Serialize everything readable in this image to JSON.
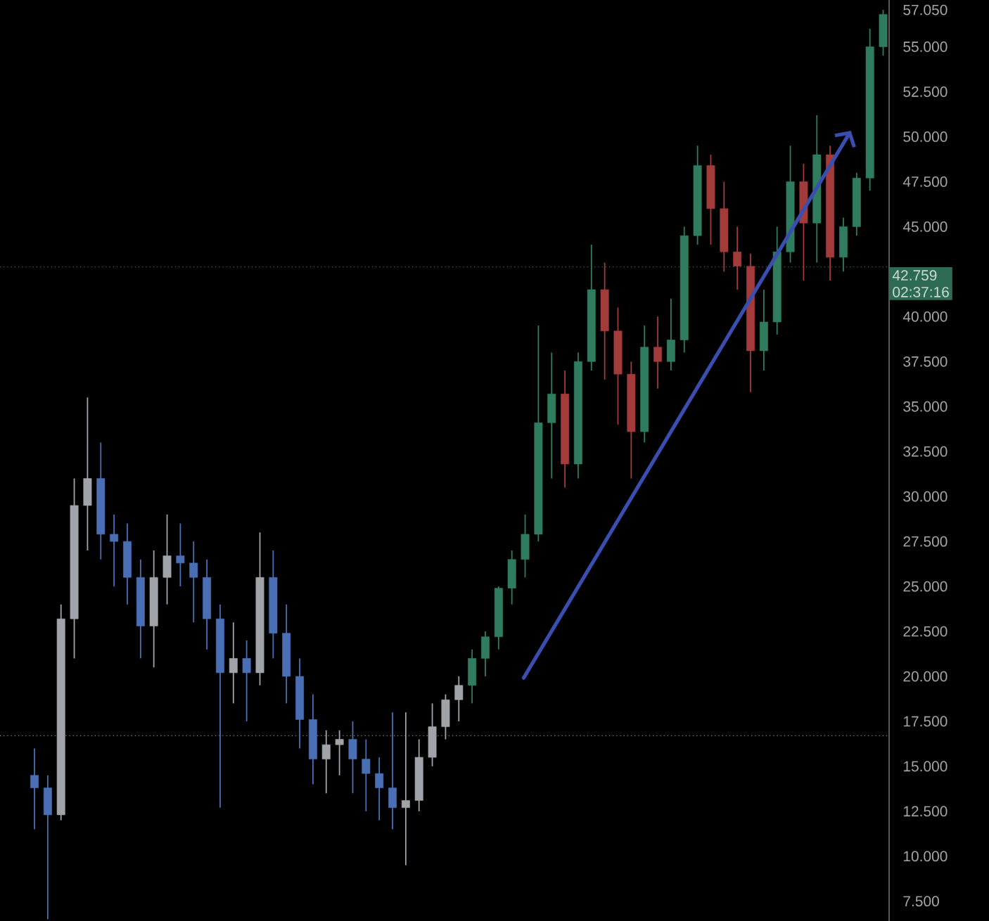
{
  "chart_data": {
    "type": "candlestick",
    "categories": [
      null,
      null,
      null,
      null,
      null,
      null,
      null,
      null,
      null,
      null,
      null,
      null,
      null,
      null,
      null,
      null,
      null,
      null,
      null,
      null,
      null,
      null,
      null,
      null,
      null,
      null,
      null,
      null,
      null,
      null,
      null,
      null,
      null,
      null,
      null,
      null,
      null,
      null,
      null,
      null,
      null,
      null,
      null,
      null,
      null,
      null,
      null,
      null,
      null,
      null,
      null,
      null,
      null,
      null,
      null,
      null,
      null,
      null,
      null,
      null,
      null,
      null,
      null,
      null,
      null
    ],
    "ohlc": [
      [
        14500,
        16000,
        11500,
        13800
      ],
      [
        13800,
        14500,
        6500,
        12300
      ],
      [
        12300,
        24000,
        12000,
        23200
      ],
      [
        23200,
        31000,
        21000,
        29500
      ],
      [
        29500,
        35500,
        27000,
        31000
      ],
      [
        31000,
        33000,
        26500,
        27900
      ],
      [
        27900,
        29000,
        25000,
        27500
      ],
      [
        27500,
        28500,
        24000,
        25500
      ],
      [
        25500,
        26500,
        21000,
        22800
      ],
      [
        22800,
        27000,
        20500,
        25500
      ],
      [
        25500,
        29000,
        24000,
        26700
      ],
      [
        26700,
        28500,
        25000,
        26300
      ],
      [
        26300,
        27500,
        23000,
        25500
      ],
      [
        25500,
        26500,
        21500,
        23200
      ],
      [
        23200,
        24000,
        12700,
        20200
      ],
      [
        20200,
        23000,
        18500,
        21000
      ],
      [
        21000,
        22000,
        17500,
        20200
      ],
      [
        20200,
        28000,
        19500,
        25500
      ],
      [
        25500,
        27000,
        21000,
        22400
      ],
      [
        22400,
        24000,
        18500,
        20000
      ],
      [
        20000,
        21000,
        16000,
        17600
      ],
      [
        17600,
        19000,
        14000,
        15400
      ],
      [
        15400,
        17000,
        13500,
        16200
      ],
      [
        16200,
        17000,
        14500,
        16500
      ],
      [
        16500,
        17500,
        13500,
        15400
      ],
      [
        15400,
        16500,
        12500,
        14600
      ],
      [
        14600,
        15500,
        12000,
        13800
      ],
      [
        13800,
        18000,
        11500,
        12700
      ],
      [
        12700,
        18000,
        9500,
        13100
      ],
      [
        13100,
        16500,
        12500,
        15500
      ],
      [
        15500,
        18500,
        15000,
        17200
      ],
      [
        17200,
        19000,
        16500,
        18700
      ],
      [
        18700,
        20000,
        17500,
        19500
      ],
      [
        19500,
        21500,
        18500,
        21000
      ],
      [
        21000,
        22500,
        20000,
        22200
      ],
      [
        22200,
        25000,
        21500,
        24900
      ],
      [
        24900,
        27000,
        24000,
        26500
      ],
      [
        26500,
        29000,
        25500,
        27900
      ],
      [
        27900,
        39500,
        27500,
        34100
      ],
      [
        34100,
        38000,
        31000,
        35700
      ],
      [
        35700,
        37000,
        30500,
        31800
      ],
      [
        31800,
        38000,
        31000,
        37500
      ],
      [
        37500,
        44000,
        37000,
        41500
      ],
      [
        41500,
        43000,
        36500,
        39200
      ],
      [
        39200,
        40500,
        34000,
        36800
      ],
      [
        36800,
        37500,
        31000,
        33600
      ],
      [
        33600,
        39500,
        33000,
        38300
      ],
      [
        38300,
        40000,
        36000,
        37500
      ],
      [
        37500,
        41000,
        37000,
        38700
      ],
      [
        38700,
        45000,
        38000,
        44500
      ],
      [
        44500,
        49500,
        44000,
        48400
      ],
      [
        48400,
        49000,
        44000,
        46000
      ],
      [
        46000,
        47500,
        42500,
        43600
      ],
      [
        43600,
        45000,
        41500,
        42800
      ],
      [
        42800,
        43500,
        35800,
        38100
      ],
      [
        38100,
        41500,
        37000,
        39700
      ],
      [
        39700,
        45000,
        39000,
        43600
      ],
      [
        43600,
        49500,
        43000,
        47500
      ],
      [
        47500,
        48500,
        42000,
        45200
      ],
      [
        45200,
        51200,
        43000,
        49000
      ],
      [
        49000,
        49500,
        42000,
        43300
      ],
      [
        43300,
        45500,
        42500,
        45000
      ],
      [
        45000,
        48000,
        44500,
        47700
      ],
      [
        47700,
        56000,
        47000,
        55000
      ],
      [
        55000,
        57050,
        54500,
        56800
      ]
    ],
    "colors": [
      "#4a6fb5",
      "#4a6fb5",
      "#a0a4a8",
      "#a0a4a8",
      "#a0a4a8",
      "#4a6fb5",
      "#4a6fb5",
      "#4a6fb5",
      "#4a6fb5",
      "#a0a4a8",
      "#a0a4a8",
      "#4a6fb5",
      "#4a6fb5",
      "#4a6fb5",
      "#4a6fb5",
      "#a0a4a8",
      "#4a6fb5",
      "#a0a4a8",
      "#4a6fb5",
      "#4a6fb5",
      "#4a6fb5",
      "#4a6fb5",
      "#a0a4a8",
      "#a0a4a8",
      "#4a6fb5",
      "#4a6fb5",
      "#4a6fb5",
      "#4a6fb5",
      "#a0a4a8",
      "#a0a4a8",
      "#a0a4a8",
      "#a0a4a8",
      "#a0a4a8",
      "#2f7d5e",
      "#2f7d5e",
      "#2f7d5e",
      "#2f7d5e",
      "#2f7d5e",
      "#2f7d5e",
      "#2f7d5e",
      "#a33b3b",
      "#2f7d5e",
      "#2f7d5e",
      "#a33b3b",
      "#a33b3b",
      "#a33b3b",
      "#2f7d5e",
      "#a33b3b",
      "#2f7d5e",
      "#2f7d5e",
      "#2f7d5e",
      "#a33b3b",
      "#a33b3b",
      "#a33b3b",
      "#a33b3b",
      "#2f7d5e",
      "#2f7d5e",
      "#2f7d5e",
      "#a33b3b",
      "#2f7d5e",
      "#a33b3b",
      "#2f7d5e",
      "#2f7d5e",
      "#2f7d5e",
      "#2f7d5e"
    ],
    "ylim": [
      6400,
      57600
    ],
    "yticks": [
      {
        "value": 7500,
        "label": "7.500"
      },
      {
        "value": 10000,
        "label": "10.000"
      },
      {
        "value": 12500,
        "label": "12.500"
      },
      {
        "value": 15000,
        "label": "15.000"
      },
      {
        "value": 17500,
        "label": "17.500"
      },
      {
        "value": 20000,
        "label": "20.000"
      },
      {
        "value": 22500,
        "label": "22.500"
      },
      {
        "value": 25000,
        "label": "25.000"
      },
      {
        "value": 27500,
        "label": "27.500"
      },
      {
        "value": 30000,
        "label": "30.000"
      },
      {
        "value": 32500,
        "label": "32.500"
      },
      {
        "value": 35000,
        "label": "35.000"
      },
      {
        "value": 37500,
        "label": "37.500"
      },
      {
        "value": 40000,
        "label": "40.000"
      },
      {
        "value": 45000,
        "label": "45.000"
      },
      {
        "value": 47500,
        "label": "47.500"
      },
      {
        "value": 50000,
        "label": "50.000"
      },
      {
        "value": 52500,
        "label": "52.500"
      },
      {
        "value": 55000,
        "label": "55.000"
      },
      {
        "value": 57050,
        "label": "57.050"
      }
    ],
    "tick_labels": "y",
    "ref_lines": [
      {
        "axis": "y",
        "value": 42759,
        "label": "42.759",
        "color": "#2e6b55",
        "line_style": "dotted"
      },
      {
        "axis": "y",
        "value": 16700,
        "label": null,
        "color": "#8a8a8a",
        "line_style": "dotted"
      }
    ],
    "annotations": [
      "02:37:16"
    ]
  }
}
